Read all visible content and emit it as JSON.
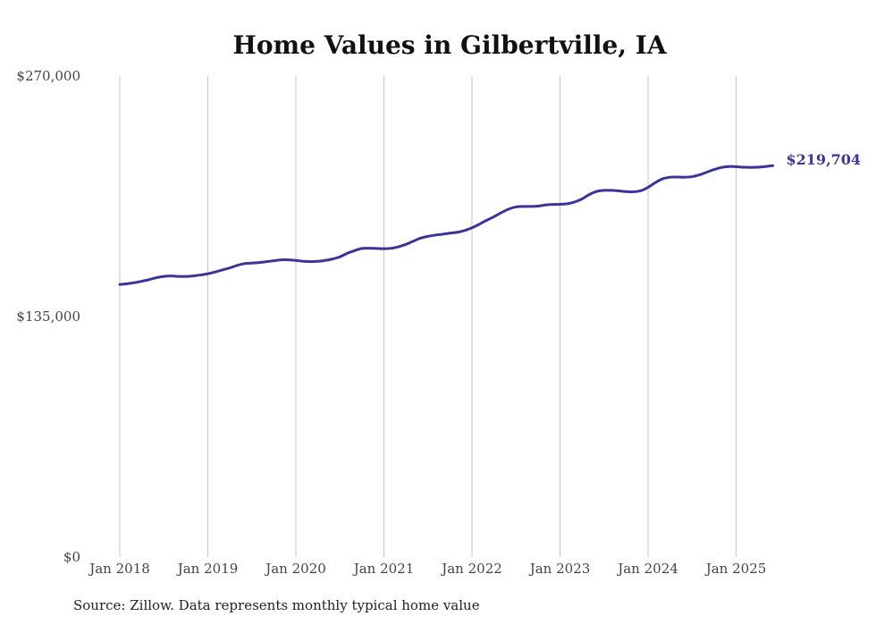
{
  "chart_data": {
    "type": "line",
    "title": "Home Values in Gilbertville, IA",
    "xlabel": "",
    "ylabel": "",
    "ylim": [
      0,
      270000
    ],
    "y_ticks": [
      {
        "value": 0,
        "label": "$0"
      },
      {
        "value": 135000,
        "label": "$135,000"
      },
      {
        "value": 270000,
        "label": "$270,000"
      }
    ],
    "x_ticks": [
      "Jan 2018",
      "Jan 2019",
      "Jan 2020",
      "Jan 2021",
      "Jan 2022",
      "Jan 2023",
      "Jan 2024",
      "Jan 2025"
    ],
    "grid": "vertical",
    "line_color": "#3b3597",
    "end_label": "$219,704",
    "series": [
      {
        "values": [
          [
            "2018-01",
            153000
          ],
          [
            "2018-02",
            153400
          ],
          [
            "2018-03",
            154000
          ],
          [
            "2018-04",
            154800
          ],
          [
            "2018-05",
            155700
          ],
          [
            "2018-06",
            156800
          ],
          [
            "2018-07",
            157500
          ],
          [
            "2018-08",
            157800
          ],
          [
            "2018-09",
            157500
          ],
          [
            "2018-10",
            157500
          ],
          [
            "2018-11",
            157800
          ],
          [
            "2018-12",
            158300
          ],
          [
            "2019-01",
            159000
          ],
          [
            "2019-02",
            160000
          ],
          [
            "2019-03",
            161200
          ],
          [
            "2019-04",
            162300
          ],
          [
            "2019-05",
            163700
          ],
          [
            "2019-06",
            164700
          ],
          [
            "2019-07",
            165000
          ],
          [
            "2019-08",
            165300
          ],
          [
            "2019-09",
            165800
          ],
          [
            "2019-10",
            166300
          ],
          [
            "2019-11",
            166800
          ],
          [
            "2019-12",
            166800
          ],
          [
            "2020-01",
            166500
          ],
          [
            "2020-02",
            166000
          ],
          [
            "2020-03",
            165800
          ],
          [
            "2020-04",
            166000
          ],
          [
            "2020-05",
            166500
          ],
          [
            "2020-06",
            167300
          ],
          [
            "2020-07",
            168500
          ],
          [
            "2020-08",
            170500
          ],
          [
            "2020-09",
            172000
          ],
          [
            "2020-10",
            173200
          ],
          [
            "2020-11",
            173300
          ],
          [
            "2020-12",
            173200
          ],
          [
            "2021-01",
            173100
          ],
          [
            "2021-02",
            173300
          ],
          [
            "2021-03",
            174200
          ],
          [
            "2021-04",
            175500
          ],
          [
            "2021-05",
            177300
          ],
          [
            "2021-06",
            179000
          ],
          [
            "2021-07",
            180000
          ],
          [
            "2021-08",
            180700
          ],
          [
            "2021-09",
            181200
          ],
          [
            "2021-10",
            181800
          ],
          [
            "2021-11",
            182300
          ],
          [
            "2021-12",
            183300
          ],
          [
            "2022-01",
            184800
          ],
          [
            "2022-02",
            186800
          ],
          [
            "2022-03",
            189000
          ],
          [
            "2022-04",
            191000
          ],
          [
            "2022-05",
            193300
          ],
          [
            "2022-06",
            195300
          ],
          [
            "2022-07",
            196500
          ],
          [
            "2022-08",
            196800
          ],
          [
            "2022-09",
            196800
          ],
          [
            "2022-10",
            197000
          ],
          [
            "2022-11",
            197600
          ],
          [
            "2022-12",
            197900
          ],
          [
            "2023-01",
            198000
          ],
          [
            "2023-02",
            198300
          ],
          [
            "2023-03",
            199300
          ],
          [
            "2023-04",
            201000
          ],
          [
            "2023-05",
            203500
          ],
          [
            "2023-06",
            205200
          ],
          [
            "2023-07",
            205800
          ],
          [
            "2023-08",
            205800
          ],
          [
            "2023-09",
            205500
          ],
          [
            "2023-10",
            205100
          ],
          [
            "2023-11",
            205000
          ],
          [
            "2023-12",
            205600
          ],
          [
            "2024-01",
            207500
          ],
          [
            "2024-02",
            210200
          ],
          [
            "2024-03",
            212300
          ],
          [
            "2024-04",
            213200
          ],
          [
            "2024-05",
            213300
          ],
          [
            "2024-06",
            213200
          ],
          [
            "2024-07",
            213500
          ],
          [
            "2024-08",
            214500
          ],
          [
            "2024-09",
            216000
          ],
          [
            "2024-10",
            217500
          ],
          [
            "2024-11",
            218700
          ],
          [
            "2024-12",
            219200
          ],
          [
            "2025-01",
            219100
          ],
          [
            "2025-02",
            218800
          ],
          [
            "2025-03",
            218700
          ],
          [
            "2025-04",
            218800
          ],
          [
            "2025-05",
            219200
          ],
          [
            "2025-06",
            219704
          ]
        ]
      }
    ]
  },
  "footer": {
    "source": "Source: Zillow. Data represents monthly typical home value"
  }
}
